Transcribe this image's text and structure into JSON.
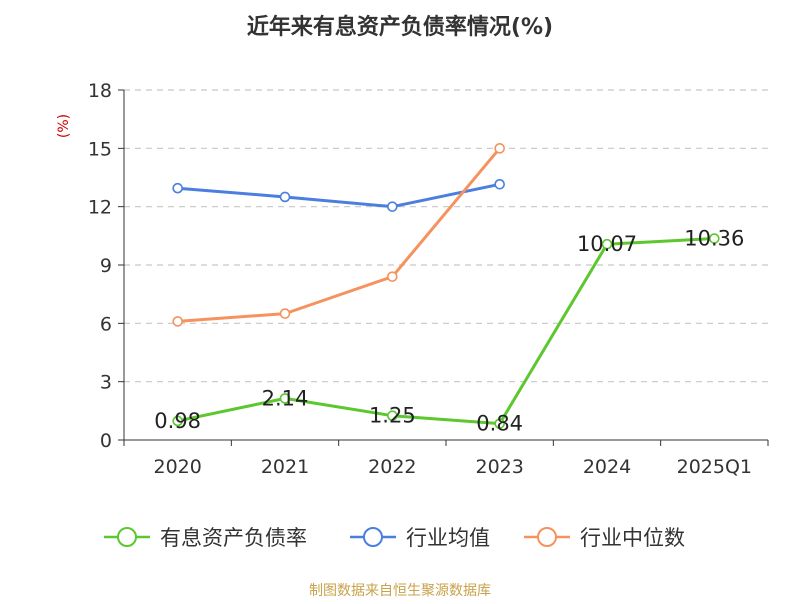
{
  "chart_data": {
    "type": "line",
    "title": "近年来有息资产负债率情况(%)",
    "ylabel": "(%)",
    "xlabel": "",
    "categories": [
      "2020",
      "2021",
      "2022",
      "2023",
      "2024",
      "2025Q1"
    ],
    "ylim": [
      0,
      18
    ],
    "yticks": [
      0,
      3,
      6,
      9,
      12,
      15,
      18
    ],
    "grid": true,
    "legend_position": "bottom",
    "series": [
      {
        "name": "有息资产负债率",
        "color": "#5cc72f",
        "values": [
          0.98,
          2.14,
          1.25,
          0.84,
          10.07,
          10.36
        ],
        "labels": [
          "0.98",
          "2.14",
          "1.25",
          "0.84",
          "10.07",
          "10.36"
        ]
      },
      {
        "name": "行业均值",
        "color": "#4a7fe0",
        "values": [
          12.95,
          12.5,
          12.0,
          13.15,
          null,
          null
        ]
      },
      {
        "name": "行业中位数",
        "color": "#f5925e",
        "values": [
          6.1,
          6.5,
          8.4,
          15.0,
          null,
          null
        ]
      }
    ],
    "source": "制图数据来自恒生聚源数据库"
  }
}
